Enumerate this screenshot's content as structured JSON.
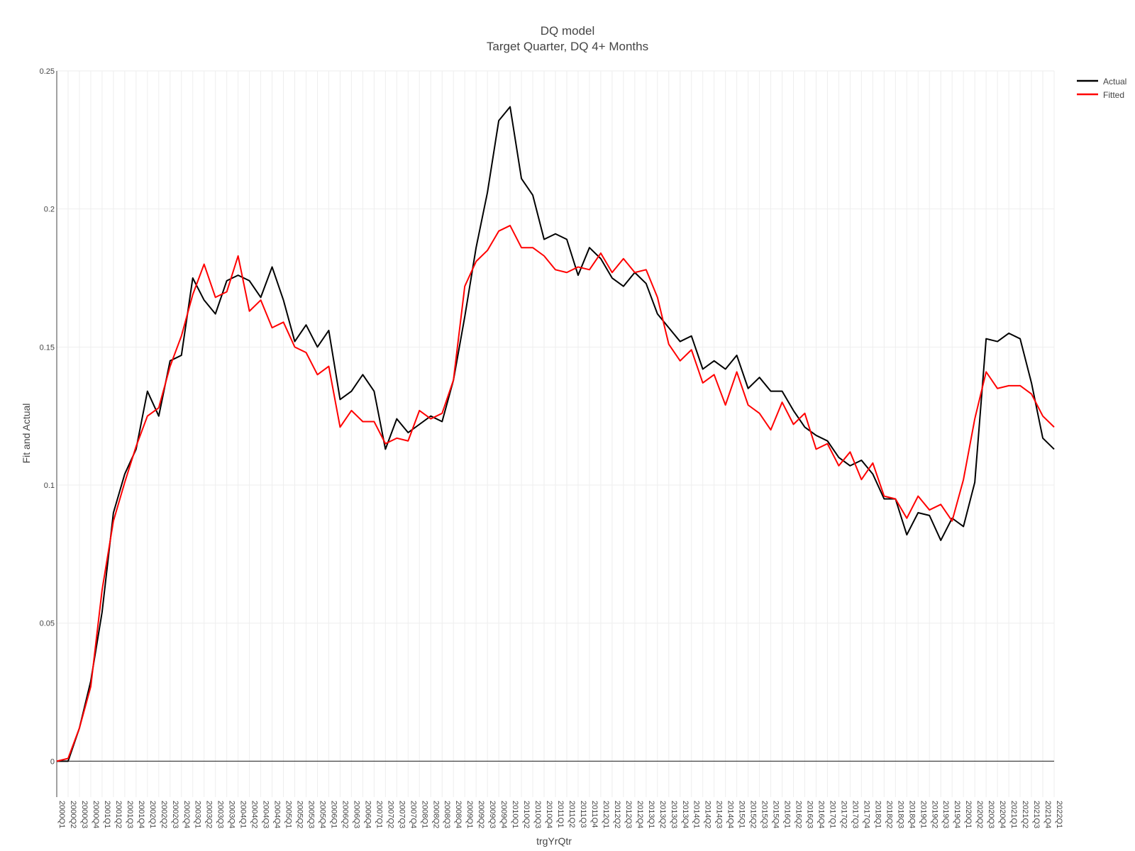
{
  "chart_data": {
    "type": "line",
    "title": "DQ model",
    "subtitle": "Target Quarter, DQ 4+ Months",
    "xlabel": "trgYrQtr",
    "ylabel": "Fit and Actual",
    "ylim": [
      -0.013,
      0.25
    ],
    "yticks": [
      0,
      0.05,
      0.1,
      0.15,
      0.2,
      0.25
    ],
    "ytick_labels": [
      "0",
      "0.05",
      "0.1",
      "0.15",
      "0.2",
      "0.25"
    ],
    "grid": true,
    "legend_position": "top-right",
    "x": [
      "2000Q1",
      "2000Q2",
      "2000Q3",
      "2000Q4",
      "2001Q1",
      "2001Q2",
      "2001Q3",
      "2001Q4",
      "2002Q1",
      "2002Q2",
      "2002Q3",
      "2002Q4",
      "2003Q1",
      "2003Q2",
      "2003Q3",
      "2003Q4",
      "2004Q1",
      "2004Q2",
      "2004Q3",
      "2004Q4",
      "2005Q1",
      "2005Q2",
      "2005Q3",
      "2005Q4",
      "2006Q1",
      "2006Q2",
      "2006Q3",
      "2006Q4",
      "2007Q1",
      "2007Q2",
      "2007Q3",
      "2007Q4",
      "2008Q1",
      "2008Q2",
      "2008Q3",
      "2008Q4",
      "2009Q1",
      "2009Q2",
      "2009Q3",
      "2009Q4",
      "2010Q1",
      "2010Q2",
      "2010Q3",
      "2010Q4",
      "2011Q1",
      "2011Q2",
      "2011Q3",
      "2011Q4",
      "2012Q1",
      "2012Q2",
      "2012Q3",
      "2012Q4",
      "2013Q1",
      "2013Q2",
      "2013Q3",
      "2013Q4",
      "2014Q1",
      "2014Q2",
      "2014Q3",
      "2014Q4",
      "2015Q1",
      "2015Q2",
      "2015Q3",
      "2015Q4",
      "2016Q1",
      "2016Q2",
      "2016Q3",
      "2016Q4",
      "2017Q1",
      "2017Q2",
      "2017Q3",
      "2017Q4",
      "2018Q1",
      "2018Q2",
      "2018Q3",
      "2018Q4",
      "2019Q1",
      "2019Q2",
      "2019Q3",
      "2019Q4",
      "2020Q1",
      "2020Q2",
      "2020Q3",
      "2020Q4",
      "2021Q1",
      "2021Q2",
      "2021Q3",
      "2021Q4",
      "2022Q1"
    ],
    "tick_labels": [
      "2000Q1",
      "2000Q2",
      "2000Q3",
      "2000Q4",
      "2001Q1",
      "2001Q2",
      "2001Q3",
      "2001Q4",
      "2002Q1",
      "2002Q2",
      "2002Q3",
      "2002Q4",
      "2003Q1",
      "2003Q2",
      "2003Q3",
      "2003Q4",
      "2004Q1",
      "2004Q2",
      "2004Q3",
      "2004Q4",
      "2005Q1",
      "2005Q2",
      "2005Q3",
      "2005Q4",
      "2006Q1",
      "2006Q2",
      "2006Q3",
      "2006Q4",
      "2007Q1",
      "2007Q2",
      "2007Q3",
      "2007Q4",
      "2008Q1",
      "2008Q2",
      "2008Q3",
      "2008Q4",
      "2009Q1",
      "2009Q2",
      "2009Q3",
      "2009Q4",
      "2010Q1",
      "2010Q2",
      "2010Q3",
      "2010Q4",
      "2011Q1",
      "2011Q2",
      "2011Q3",
      "2011Q4",
      "2012Q1",
      "2012Q2",
      "2012Q3",
      "2012Q4",
      "2013Q1",
      "2013Q2",
      "2013Q3",
      "2013Q4",
      "2014Q1",
      "2014Q2",
      "2014Q3",
      "2014Q4",
      "2015Q1",
      "2015Q2",
      "2015Q3",
      "2015Q4",
      "2016Q1",
      "2016Q2",
      "2016Q3",
      "2016Q4",
      "2017Q1",
      "2017Q2",
      "2017Q3",
      "2017Q4",
      "2018Q1",
      "2018Q2",
      "2018Q3",
      "2018Q4",
      "2019Q1",
      "2019Q2",
      "2019Q3",
      "2019Q4",
      "2020Q1",
      "2020Q2",
      "2020Q3",
      "2020Q4",
      "2021Q1",
      "2021Q2",
      "2021Q3",
      "2021Q4",
      "2022Q1"
    ],
    "series": [
      {
        "name": "Actual",
        "color": "#000000",
        "values": [
          0.0,
          0.0,
          0.012,
          0.029,
          0.054,
          0.09,
          0.104,
          0.113,
          0.134,
          0.125,
          0.145,
          0.147,
          0.175,
          0.167,
          0.162,
          0.174,
          0.176,
          0.174,
          0.168,
          0.179,
          0.167,
          0.152,
          0.158,
          0.15,
          0.156,
          0.131,
          0.134,
          0.14,
          0.134,
          0.113,
          0.124,
          0.119,
          0.122,
          0.125,
          0.123,
          0.138,
          0.161,
          0.186,
          0.206,
          0.232,
          0.237,
          0.211,
          0.205,
          0.189,
          0.191,
          0.189,
          0.176,
          0.186,
          0.182,
          0.175,
          0.172,
          0.177,
          0.173,
          0.162,
          0.157,
          0.152,
          0.154,
          0.142,
          0.145,
          0.142,
          0.147,
          0.135,
          0.139,
          0.134,
          0.134,
          0.127,
          0.121,
          0.118,
          0.116,
          0.11,
          0.107,
          0.109,
          0.104,
          0.095,
          0.095,
          0.082,
          0.09,
          0.089,
          0.08,
          0.088,
          0.085,
          0.101,
          0.153,
          0.152,
          0.155,
          0.153,
          0.137,
          0.117,
          0.113
        ]
      },
      {
        "name": "Fitted",
        "color": "#ff0000",
        "values": [
          0.0,
          0.001,
          0.012,
          0.027,
          0.062,
          0.087,
          0.101,
          0.114,
          0.125,
          0.128,
          0.143,
          0.154,
          0.169,
          0.18,
          0.168,
          0.17,
          0.183,
          0.163,
          0.167,
          0.157,
          0.159,
          0.15,
          0.148,
          0.14,
          0.143,
          0.121,
          0.127,
          0.123,
          0.123,
          0.115,
          0.117,
          0.116,
          0.127,
          0.124,
          0.126,
          0.138,
          0.172,
          0.181,
          0.185,
          0.192,
          0.194,
          0.186,
          0.186,
          0.183,
          0.178,
          0.177,
          0.179,
          0.178,
          0.184,
          0.177,
          0.182,
          0.177,
          0.178,
          0.168,
          0.151,
          0.145,
          0.149,
          0.137,
          0.14,
          0.129,
          0.141,
          0.129,
          0.126,
          0.12,
          0.13,
          0.122,
          0.126,
          0.113,
          0.115,
          0.107,
          0.112,
          0.102,
          0.108,
          0.096,
          0.095,
          0.088,
          0.096,
          0.091,
          0.093,
          0.087,
          0.102,
          0.124,
          0.141,
          0.135,
          0.136,
          0.136,
          0.133,
          0.125,
          0.121
        ]
      }
    ]
  }
}
